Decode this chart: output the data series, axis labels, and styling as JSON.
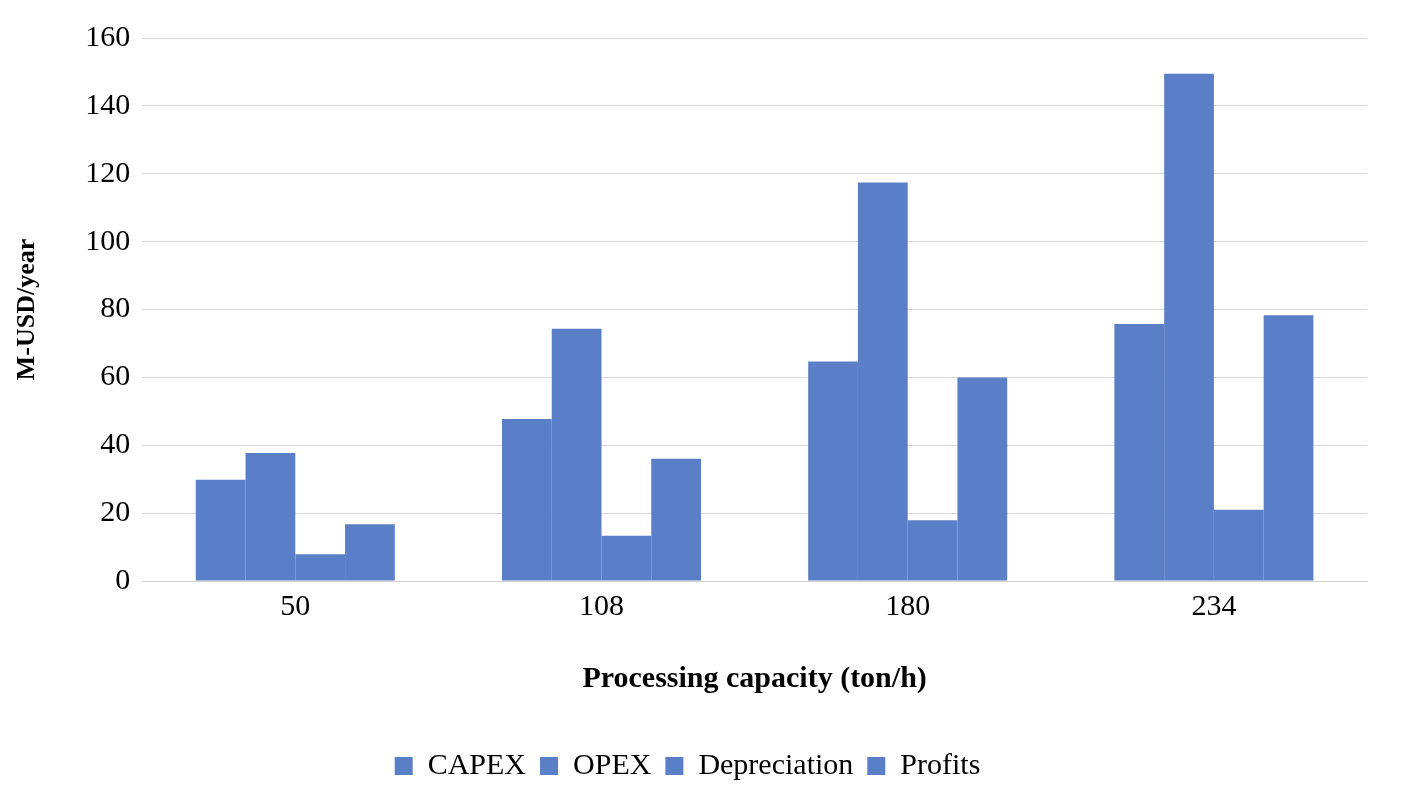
{
  "chart_data": {
    "type": "bar",
    "xlabel": "Processing capacity (ton/h)",
    "ylabel": "M-USD/year",
    "categories": [
      "50",
      "108",
      "180",
      "234"
    ],
    "series": [
      {
        "name": "CAPEX",
        "color": "#5a7fc6",
        "values": [
          29.8,
          47.7,
          64.7,
          75.7
        ]
      },
      {
        "name": "OPEX",
        "color": "#5a7fc6",
        "values": [
          37.7,
          74.3,
          117.4,
          149.5
        ]
      },
      {
        "name": "Depreciation",
        "color": "#5a7fc6",
        "values": [
          7.9,
          13.3,
          17.9,
          21
        ]
      },
      {
        "name": "Profits",
        "color": "#5a7fc6",
        "values": [
          16.7,
          36,
          60,
          78.3
        ]
      }
    ],
    "ylim": [
      0,
      160
    ],
    "yticks": [
      0,
      20,
      40,
      60,
      80,
      100,
      120,
      140,
      160
    ],
    "grid": "y",
    "legend": "bottom"
  }
}
